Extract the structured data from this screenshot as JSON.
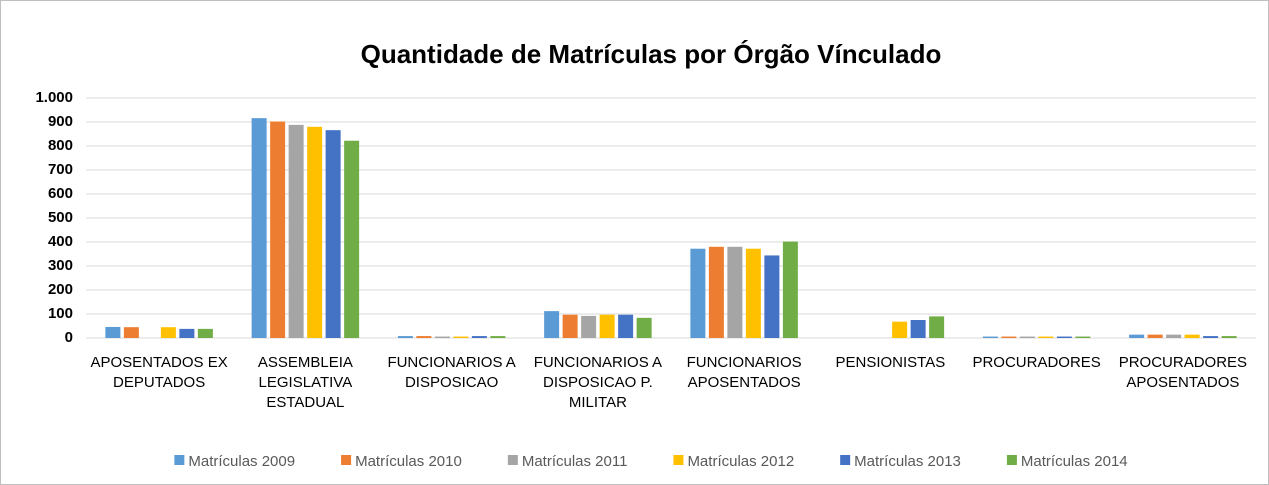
{
  "chart_data": {
    "type": "bar",
    "title": "Quantidade de Matrículas por Órgão Vínculado",
    "categories": [
      "APOSENTADOS EX DEPUTADOS",
      "ASSEMBLEIA LEGISLATIVA ESTADUAL",
      "FUNCIONARIOS A DISPOSICAO",
      "FUNCIONARIOS A DISPOSICAO P. MILITAR",
      "FUNCIONARIOS APOSENTADOS",
      "PENSIONISTAS",
      "PROCURADORES",
      "PROCURADORES APOSENTADOS"
    ],
    "series": [
      {
        "name": "Matrículas 2009",
        "color": "#5b9bd5",
        "values": [
          46,
          916,
          8,
          112,
          372,
          0,
          6,
          14
        ]
      },
      {
        "name": "Matrículas 2010",
        "color": "#ed7d31",
        "values": [
          45,
          902,
          8,
          97,
          380,
          0,
          6,
          14
        ]
      },
      {
        "name": "Matrículas 2011",
        "color": "#a5a5a5",
        "values": [
          0,
          888,
          6,
          92,
          380,
          0,
          6,
          14
        ]
      },
      {
        "name": "Matrículas 2012",
        "color": "#ffc000",
        "values": [
          45,
          880,
          6,
          97,
          372,
          68,
          6,
          14
        ]
      },
      {
        "name": "Matrículas 2013",
        "color": "#4472c4",
        "values": [
          38,
          866,
          8,
          97,
          344,
          75,
          6,
          8
        ]
      },
      {
        "name": "Matrículas 2014",
        "color": "#70ad47",
        "values": [
          38,
          822,
          8,
          84,
          402,
          90,
          6,
          8
        ]
      }
    ],
    "ylim": [
      0,
      1000
    ],
    "yticks": [
      0,
      100,
      200,
      300,
      400,
      500,
      600,
      700,
      800,
      900,
      {
        "value": 1000,
        "label": "1.000"
      }
    ],
    "grid": true
  }
}
